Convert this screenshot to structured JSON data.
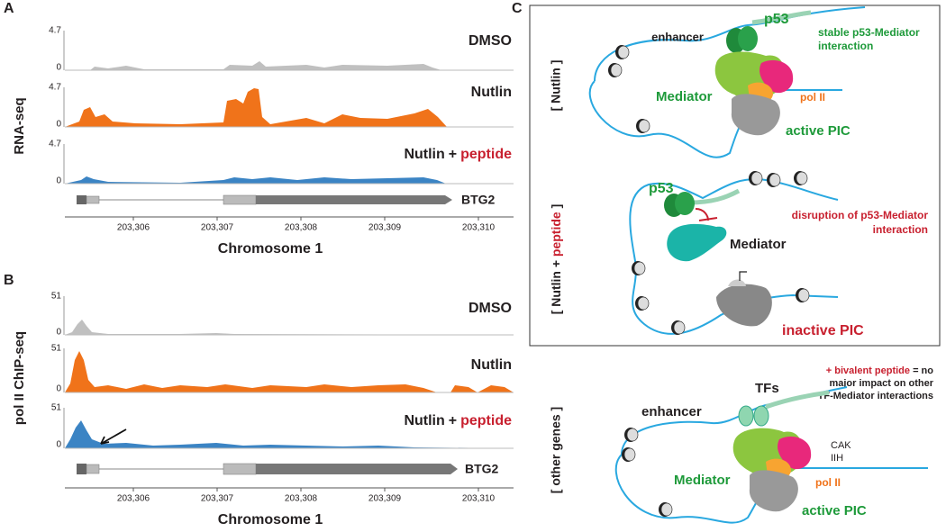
{
  "panel_a": {
    "label": "A",
    "y_label": "RNA-seq",
    "tracks": [
      {
        "max": "4.7",
        "min": "0",
        "name": "DMSO"
      },
      {
        "max": "4.7",
        "min": "0",
        "name": "Nutlin"
      },
      {
        "max": "4.7",
        "min": "0",
        "name": "Nutlin",
        "plus": "+",
        "treatment": "peptide"
      }
    ],
    "gene": "BTG2",
    "x_ticks": [
      "203,306",
      "203,307",
      "203,308",
      "203,309",
      "203,310"
    ],
    "x_label": "Chromosome 1"
  },
  "panel_b": {
    "label": "B",
    "y_label": "pol II ChIP-seq",
    "tracks": [
      {
        "max": "51",
        "min": "0",
        "name": "DMSO"
      },
      {
        "max": "51",
        "min": "0",
        "name": "Nutlin"
      },
      {
        "max": "51",
        "min": "0",
        "name": "Nutlin",
        "plus": "+",
        "treatment": "peptide"
      }
    ],
    "gene": "BTG2",
    "x_ticks": [
      "203,306",
      "203,307",
      "203,308",
      "203,309",
      "203,310"
    ],
    "x_label": "Chromosome 1"
  },
  "panel_c": {
    "label": "C",
    "nutlin": {
      "condition": "[ Nutlin ]",
      "enhancer": "enhancer",
      "p53": "p53",
      "interaction": [
        "stable p53-Mediator",
        "interaction"
      ],
      "mediator": "Mediator",
      "pol2": "pol II",
      "pic": "active PIC"
    },
    "peptide": {
      "condition": [
        "[ Nutlin ",
        "+",
        " peptide",
        " ]"
      ],
      "p53": "p53",
      "interaction": [
        "disruption of p53-Mediator",
        "interaction"
      ],
      "mediator": "Mediator",
      "pic": "inactive PIC"
    },
    "other": {
      "condition": "[ other genes ]",
      "note_lead": "+ bivalent peptide",
      "note": [
        " = no",
        "major impact on other",
        "TF-Mediator interactions"
      ],
      "tfs": "TFs",
      "enhancer": "enhancer",
      "cak": "CAK",
      "iih": "IIH",
      "mediator": "Mediator",
      "pol2": "pol II",
      "pic": "active PIC"
    }
  }
}
